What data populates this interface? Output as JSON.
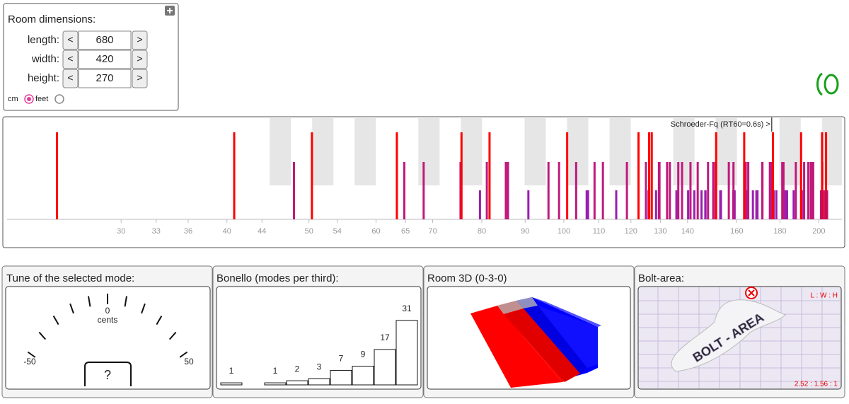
{
  "room": {
    "title": "Room dimensions:",
    "prev": "<",
    "next": ">",
    "rows": [
      {
        "label": "length:",
        "value": 680
      },
      {
        "label": "width:",
        "value": 420
      },
      {
        "label": "height:",
        "value": 270
      }
    ],
    "units": [
      "cm",
      "feet"
    ],
    "selected_unit": 0
  },
  "chart_data": {
    "type": "mode-spectrum",
    "xscale": "log",
    "xlim": [
      22,
      213
    ],
    "xticks": [
      30,
      33,
      36,
      40,
      44,
      50,
      54,
      60,
      65,
      70,
      80,
      90,
      100,
      110,
      120,
      130,
      140,
      160,
      180,
      200
    ],
    "annotation": "Schroeder-Fq (RT60=0.6s) >",
    "schroeder_frequency": 176,
    "series": [
      {
        "color": "#9a1fb0",
        "values": [
          79.6,
          90.8,
          106.4,
          106.8,
          115.3,
          125.9,
          128.5,
          135.8,
          140.2,
          142.6,
          145.4,
          146.9,
          147,
          153,
          153.3,
          158.5,
          159.1,
          164.8,
          167.2,
          168.8,
          169,
          169.3,
          176.9,
          178.2,
          181.5,
          182.5,
          183.2,
          183.4,
          183.5,
          186.8,
          190.7,
          191.9,
          191.9,
          196.4,
          196.6,
          201.2,
          201.6,
          202.1,
          203.2,
          204.6
        ]
      },
      {
        "color": "#c0197c",
        "values": [
          48,
          64.8,
          68.3,
          75.5,
          81.1,
          85.4,
          85.9,
          95.9,
          98.7,
          103.4,
          108.7,
          111.2,
          118.7,
          125,
          129.5,
          129.7,
          132.4,
          133.4,
          136.5,
          137.9,
          141.1,
          143.9,
          148,
          150.1,
          151,
          156.6,
          158.6,
          163.3,
          164,
          165.1,
          171.5,
          171.6,
          175.1,
          175.9,
          176,
          181.1,
          181.6,
          181.7,
          187.9,
          192.2,
          194.4,
          195.7,
          195.9,
          197,
          201.9
        ]
      },
      {
        "color": "#ff0000",
        "values": [
          25.2,
          40.8,
          50.4,
          63.5,
          75.7,
          81.7,
          100.9,
          122.5,
          126.1,
          127,
          151.3,
          163.3,
          176.6,
          190.6,
          201.8,
          204
        ]
      }
    ]
  },
  "panels": {
    "tune": {
      "title": "Tune of the selected mode:",
      "center_label": "0",
      "unit_label": "cents",
      "min_label": "-50",
      "max_label": "50",
      "reading": "?"
    },
    "bonello": {
      "title": "Bonello (modes per third):",
      "values": [
        1,
        null,
        1,
        2,
        3,
        7,
        9,
        17,
        31
      ]
    },
    "room3d": {
      "title": "Room 3D (0-3-0)"
    },
    "bolt": {
      "title": "Bolt-area:",
      "ratio_header": "L : W : H",
      "ratio": "2.52 : 1.56 : 1",
      "watermark": "BOLT - AREA"
    }
  }
}
